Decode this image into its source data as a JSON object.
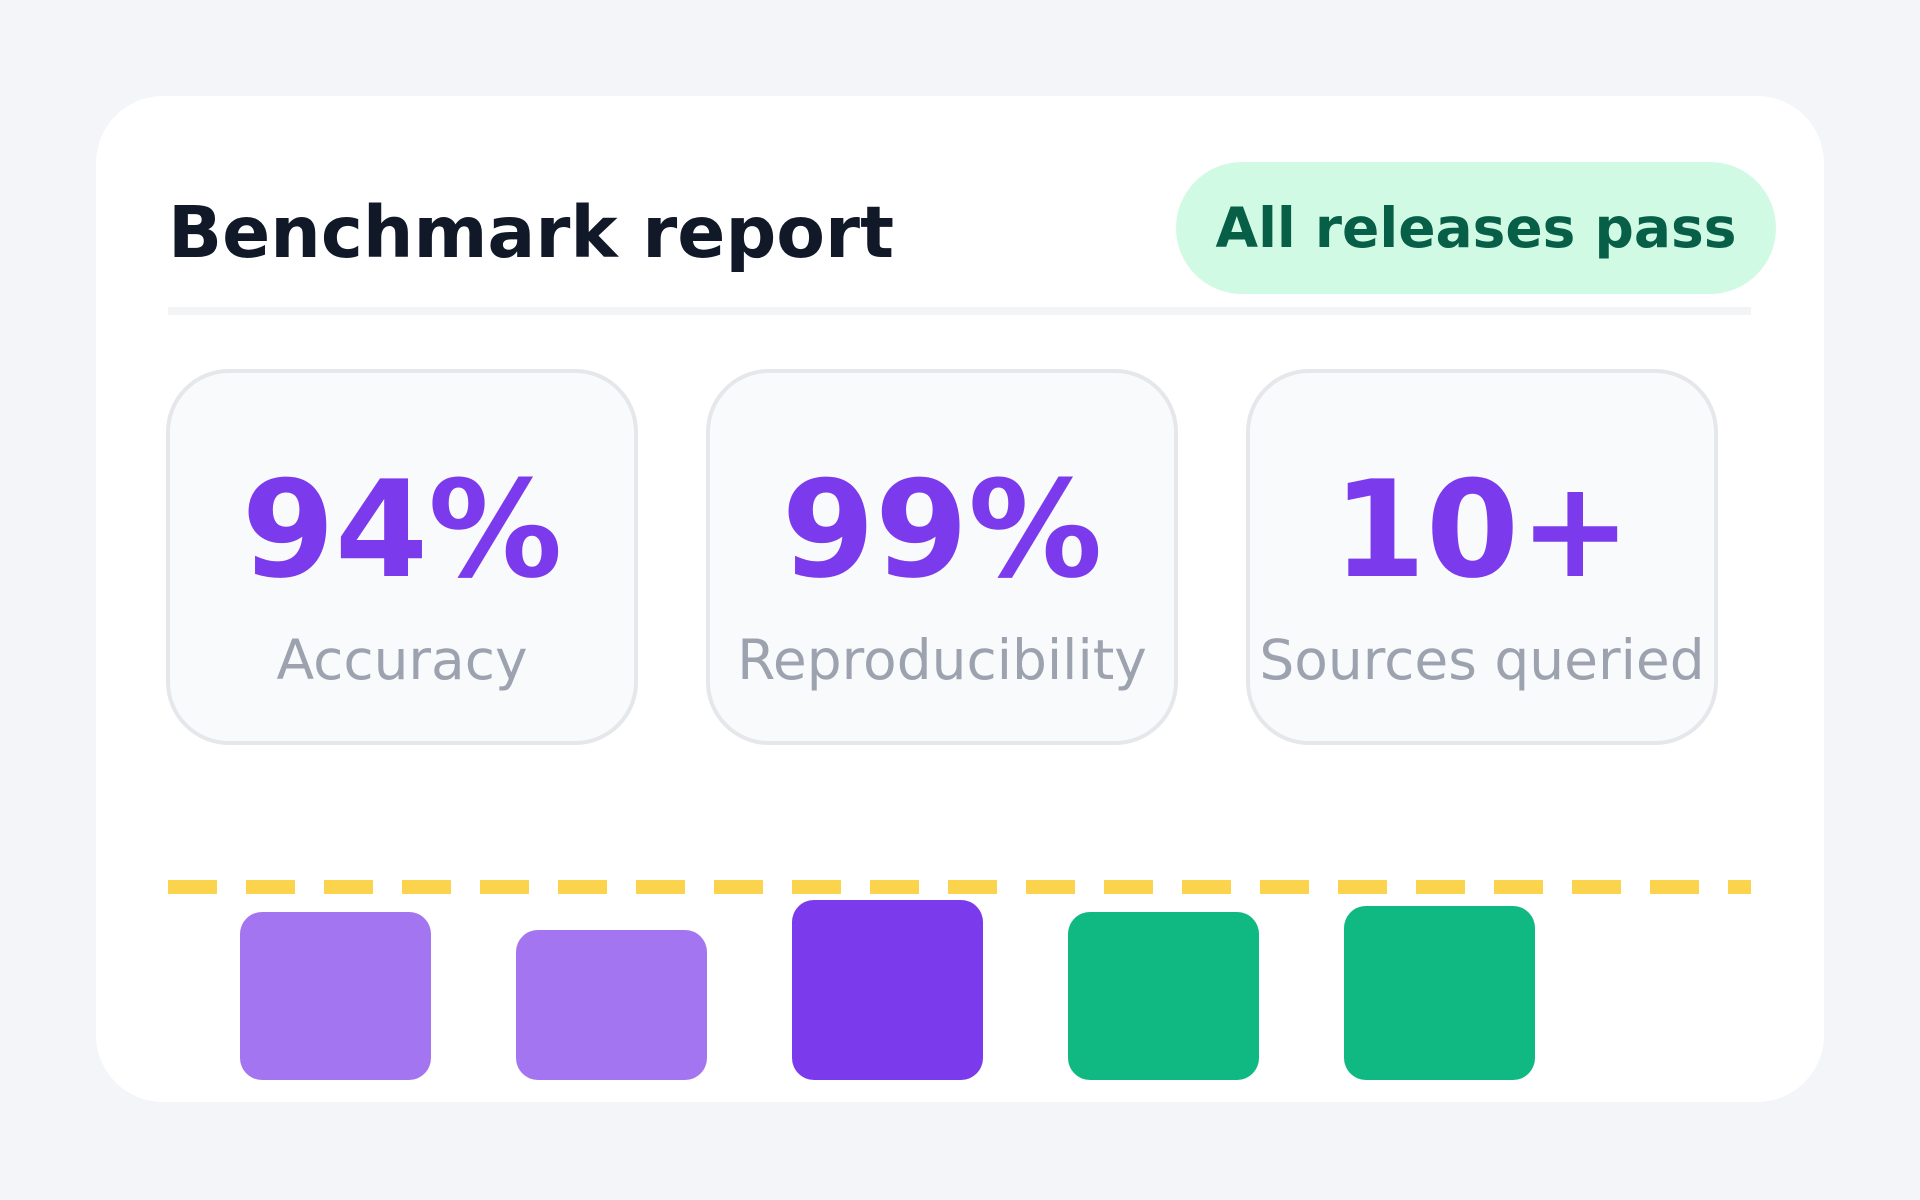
{
  "header": {
    "title": "Benchmark report",
    "badge": "All releases pass"
  },
  "stats": [
    {
      "value": "94%",
      "label": "Accuracy"
    },
    {
      "value": "99%",
      "label": "Reproducibility"
    },
    {
      "value": "10+",
      "label": "Sources queried"
    }
  ]
}
